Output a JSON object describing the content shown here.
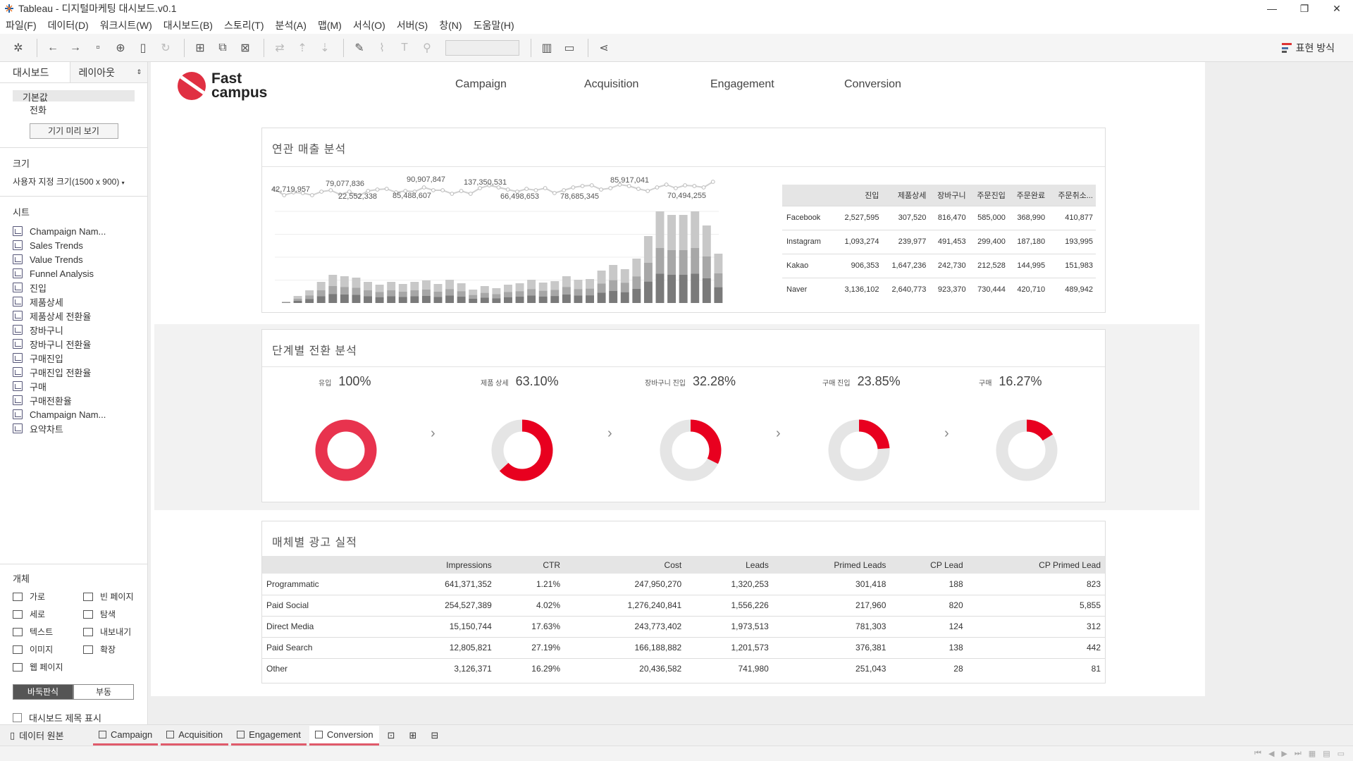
{
  "window": {
    "title": "Tableau - 디지털마케팅 대시보드.v0.1",
    "controls": [
      "—",
      "❐",
      "✕"
    ]
  },
  "menu": [
    "파일(F)",
    "데이터(D)",
    "워크시트(W)",
    "대시보드(B)",
    "스토리(T)",
    "분석(A)",
    "맵(M)",
    "서식(O)",
    "서버(S)",
    "창(N)",
    "도움말(H)"
  ],
  "toolbar": {
    "show_me": "표현 방식"
  },
  "sidebar": {
    "tab_dashboard": "대시보드",
    "tab_layout": "레이아웃",
    "device_default": "기본값",
    "device_phone": "전화",
    "device_preview": "기기 미리 보기",
    "size_label": "크기",
    "size_value": "사용자 지정 크기(1500 x 900)",
    "sheets_label": "시트",
    "sheets": [
      "Champaign Nam...",
      "Sales Trends",
      "Value Trends",
      "Funnel Analysis",
      "진입",
      "제품상세",
      "제품상세 전환율",
      "장바구니",
      "장바구니 전환율",
      "구매진입",
      "구매진입 전환율",
      "구매",
      "구매전환율",
      "Champaign Nam...",
      "요약차트"
    ],
    "objects_label": "개체",
    "objects": [
      "가로",
      "빈 페이지",
      "세로",
      "탐색",
      "텍스트",
      "내보내기",
      "이미지",
      "확장",
      "웹 페이지"
    ],
    "tiled": "바둑판식",
    "floating": "부동",
    "show_title": "대시보드 제목 표시"
  },
  "dashboard": {
    "logo_line1": "Fast",
    "logo_line2": "campus",
    "nav": [
      "Campaign",
      "Acquisition",
      "Engagement",
      "Conversion"
    ],
    "revenue_title": "연관 매출 분석",
    "funnel_title": "단계별 전환 분석",
    "ads_title": "매체별 광고 실적"
  },
  "chart_data": {
    "type": "bar",
    "series": [
      {
        "values": [
          42719957,
          79077836,
          22552338,
          90907847,
          85488607,
          137350531,
          66498653,
          78685345,
          85917041,
          70494255
        ]
      }
    ],
    "line_labels": [
      "42,719,957",
      "79,077,836",
      "22,552,338",
      "90,907,847",
      "85,488,607",
      "137,350,531",
      "66,498,653",
      "78,685,345",
      "85,917,041",
      "70,494,255"
    ],
    "stack_totals": [
      2,
      10,
      18,
      30,
      40,
      38,
      36,
      30,
      26,
      30,
      27,
      30,
      32,
      27,
      33,
      28,
      19,
      24,
      21,
      26,
      28,
      33,
      29,
      31,
      38,
      33,
      34,
      46,
      54,
      48,
      63,
      95,
      130,
      125,
      125,
      130,
      110,
      70
    ],
    "stack_dark_share": 0.32,
    "stack_mid_share": 0.28
  },
  "channel_table": {
    "columns": [
      "",
      "진입",
      "제품상세",
      "장바구니",
      "주문진입",
      "주문완료",
      "주문취소..."
    ],
    "rows": [
      [
        "Facebook",
        "2,527,595",
        "307,520",
        "816,470",
        "585,000",
        "368,990",
        "410,877"
      ],
      [
        "Instagram",
        "1,093,274",
        "239,977",
        "491,453",
        "299,400",
        "187,180",
        "193,995"
      ],
      [
        "Kakao",
        "906,353",
        "1,647,236",
        "242,730",
        "212,528",
        "144,995",
        "151,983"
      ],
      [
        "Naver",
        "3,136,102",
        "2,640,773",
        "923,370",
        "730,444",
        "420,710",
        "489,942"
      ]
    ]
  },
  "funnel": [
    {
      "label": "유입",
      "pct": "100%",
      "value": 1.0
    },
    {
      "label": "제품 상세",
      "pct": "63.10%",
      "value": 0.631
    },
    {
      "label": "장바구니 진입",
      "pct": "32.28%",
      "value": 0.3228
    },
    {
      "label": "구매 진입",
      "pct": "23.85%",
      "value": 0.2385
    },
    {
      "label": "구매",
      "pct": "16.27%",
      "value": 0.1627
    }
  ],
  "funnel_colors": {
    "full": "#e8334e",
    "part": "#e8001f",
    "track": "#e5e5e5"
  },
  "ad_table": {
    "columns": [
      "",
      "Impressions",
      "CTR",
      "Cost",
      "Leads",
      "Primed Leads",
      "CP Lead",
      "CP Primed Lead"
    ],
    "rows": [
      [
        "Programmatic",
        "641,371,352",
        "1.21%",
        "247,950,270",
        "1,320,253",
        "301,418",
        "188",
        "823"
      ],
      [
        "Paid Social",
        "254,527,389",
        "4.02%",
        "1,276,240,841",
        "1,556,226",
        "217,960",
        "820",
        "5,855"
      ],
      [
        "Direct Media",
        "15,150,744",
        "17.63%",
        "243,773,402",
        "1,973,513",
        "781,303",
        "124",
        "312"
      ],
      [
        "Paid Search",
        "12,805,821",
        "27.19%",
        "166,188,882",
        "1,201,573",
        "376,381",
        "138",
        "442"
      ],
      [
        "Other",
        "3,126,371",
        "16.29%",
        "20,436,582",
        "741,980",
        "251,043",
        "28",
        "81"
      ]
    ]
  },
  "bottom": {
    "data_source": "데이터 원본",
    "tabs": [
      "Campaign",
      "Acquisition",
      "Engagement",
      "Conversion"
    ],
    "active_tab": "Conversion"
  }
}
